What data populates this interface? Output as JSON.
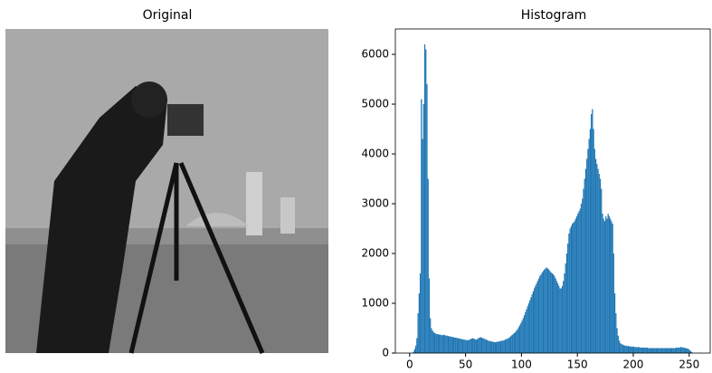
{
  "chart_data": [
    {
      "type": "image",
      "title": "Original"
    },
    {
      "type": "histogram",
      "title": "Histogram",
      "color": "#1f77b4",
      "bins": [
        0,
        1,
        2,
        3,
        4,
        5,
        6,
        7,
        8,
        9,
        10,
        11,
        12,
        13,
        14,
        15,
        16,
        17,
        18,
        19,
        20,
        21,
        22,
        23,
        24,
        25,
        26,
        27,
        28,
        29,
        30,
        31,
        32,
        33,
        34,
        35,
        36,
        37,
        38,
        39,
        40,
        41,
        42,
        43,
        44,
        45,
        46,
        47,
        48,
        49,
        50,
        51,
        52,
        53,
        54,
        55,
        56,
        57,
        58,
        59,
        60,
        61,
        62,
        63,
        64,
        65,
        66,
        67,
        68,
        69,
        70,
        71,
        72,
        73,
        74,
        75,
        76,
        77,
        78,
        79,
        80,
        81,
        82,
        83,
        84,
        85,
        86,
        87,
        88,
        89,
        90,
        91,
        92,
        93,
        94,
        95,
        96,
        97,
        98,
        99,
        100,
        101,
        102,
        103,
        104,
        105,
        106,
        107,
        108,
        109,
        110,
        111,
        112,
        113,
        114,
        115,
        116,
        117,
        118,
        119,
        120,
        121,
        122,
        123,
        124,
        125,
        126,
        127,
        128,
        129,
        130,
        131,
        132,
        133,
        134,
        135,
        136,
        137,
        138,
        139,
        140,
        141,
        142,
        143,
        144,
        145,
        146,
        147,
        148,
        149,
        150,
        151,
        152,
        153,
        154,
        155,
        156,
        157,
        158,
        159,
        160,
        161,
        162,
        163,
        164,
        165,
        166,
        167,
        168,
        169,
        170,
        171,
        172,
        173,
        174,
        175,
        176,
        177,
        178,
        179,
        180,
        181,
        182,
        183,
        184,
        185,
        186,
        187,
        188,
        189,
        190,
        191,
        192,
        193,
        194,
        195,
        196,
        197,
        198,
        199,
        200,
        201,
        202,
        203,
        204,
        205,
        206,
        207,
        208,
        209,
        210,
        211,
        212,
        213,
        214,
        215,
        216,
        217,
        218,
        219,
        220,
        221,
        222,
        223,
        224,
        225,
        226,
        227,
        228,
        229,
        230,
        231,
        232,
        233,
        234,
        235,
        236,
        237,
        238,
        239,
        240,
        241,
        242,
        243,
        244,
        245,
        246,
        247,
        248,
        249,
        250,
        251,
        252,
        253,
        254,
        255,
        256
      ],
      "values": [
        0,
        0,
        0,
        30,
        80,
        150,
        300,
        800,
        1200,
        1600,
        5100,
        4300,
        5000,
        6200,
        6100,
        5400,
        3500,
        1500,
        700,
        500,
        450,
        420,
        400,
        390,
        380,
        380,
        370,
        370,
        360,
        360,
        370,
        360,
        350,
        350,
        340,
        340,
        330,
        330,
        320,
        320,
        310,
        310,
        300,
        300,
        290,
        290,
        280,
        280,
        270,
        270,
        260,
        260,
        260,
        270,
        280,
        290,
        300,
        290,
        280,
        270,
        280,
        300,
        310,
        320,
        310,
        300,
        290,
        280,
        270,
        260,
        250,
        240,
        240,
        230,
        230,
        220,
        220,
        220,
        230,
        230,
        240,
        240,
        250,
        250,
        260,
        270,
        280,
        290,
        300,
        320,
        340,
        360,
        380,
        400,
        420,
        450,
        480,
        520,
        560,
        600,
        650,
        700,
        760,
        820,
        880,
        940,
        1000,
        1060,
        1120,
        1180,
        1240,
        1300,
        1350,
        1400,
        1450,
        1500,
        1550,
        1580,
        1620,
        1650,
        1680,
        1700,
        1720,
        1700,
        1680,
        1650,
        1620,
        1600,
        1580,
        1550,
        1500,
        1450,
        1400,
        1350,
        1300,
        1300,
        1350,
        1450,
        1600,
        1800,
        2000,
        2200,
        2400,
        2500,
        2550,
        2600,
        2620,
        2650,
        2700,
        2750,
        2800,
        2850,
        2900,
        3000,
        3100,
        3300,
        3500,
        3700,
        3900,
        4100,
        4300,
        4500,
        4800,
        4900,
        4500,
        4100,
        3900,
        3800,
        3700,
        3600,
        3500,
        3300,
        2800,
        2700,
        2650,
        2750,
        2700,
        2800,
        2750,
        2700,
        2650,
        2600,
        2000,
        1200,
        800,
        500,
        350,
        250,
        200,
        180,
        170,
        160,
        150,
        150,
        140,
        140,
        140,
        130,
        130,
        130,
        130,
        120,
        120,
        120,
        120,
        120,
        110,
        110,
        110,
        110,
        110,
        110,
        110,
        100,
        100,
        100,
        100,
        100,
        100,
        100,
        100,
        100,
        100,
        100,
        100,
        100,
        100,
        100,
        100,
        100,
        100,
        100,
        100,
        100,
        100,
        100,
        100,
        100,
        110,
        110,
        110,
        110,
        120,
        120,
        110,
        110,
        100,
        100,
        90,
        80,
        60,
        40,
        20,
        0,
        0,
        0
      ],
      "xlim": [
        -12.8,
        268.8
      ],
      "ylim": [
        0,
        6510
      ],
      "xticks": [
        0,
        50,
        100,
        150,
        200,
        250
      ],
      "yticks": [
        0,
        1000,
        2000,
        3000,
        4000,
        5000,
        6000
      ]
    }
  ]
}
